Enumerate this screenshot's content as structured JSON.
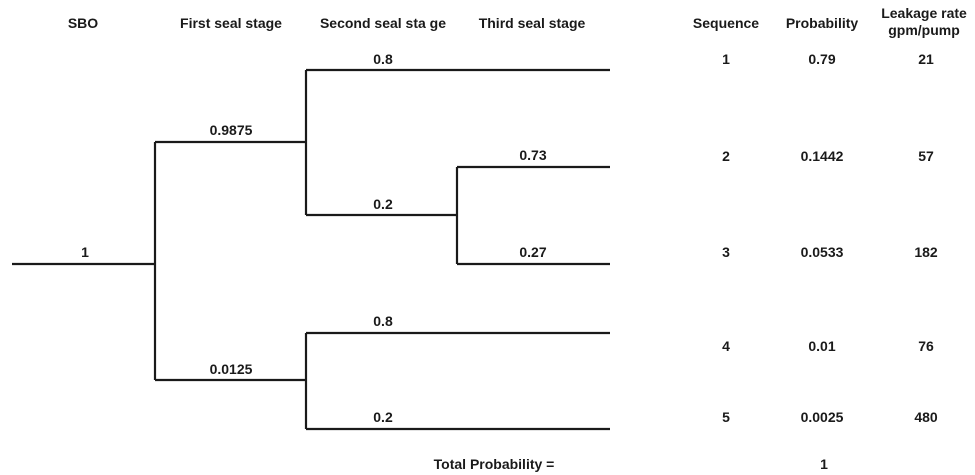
{
  "headers": {
    "sbo": "SBO",
    "first_seal": "First seal stage",
    "second_seal": "Second seal sta ge",
    "third_seal": "Third seal  stage",
    "sequence": "Sequence",
    "probability": "Probability",
    "leakage_line1": "Leakage rate",
    "leakage_line2": "gpm/pump"
  },
  "branch_labels": {
    "sbo": "1",
    "first_success": "0.9875",
    "first_failure": "0.0125",
    "second_success_upper": "0.8",
    "second_failure_upper": "0.2",
    "third_success": "0.73",
    "third_failure": "0.27",
    "second_success_lower": "0.8",
    "second_failure_lower": "0.2"
  },
  "outcomes": [
    {
      "sequence": "1",
      "probability": "0.79",
      "leakage": "21"
    },
    {
      "sequence": "2",
      "probability": "0.1442",
      "leakage": "57"
    },
    {
      "sequence": "3",
      "probability": "0.0533",
      "leakage": "182"
    },
    {
      "sequence": "4",
      "probability": "0.01",
      "leakage": "76"
    },
    {
      "sequence": "5",
      "probability": "0.0025",
      "leakage": "480"
    }
  ],
  "total": {
    "label": "Total Probability  =",
    "value": "1"
  }
}
